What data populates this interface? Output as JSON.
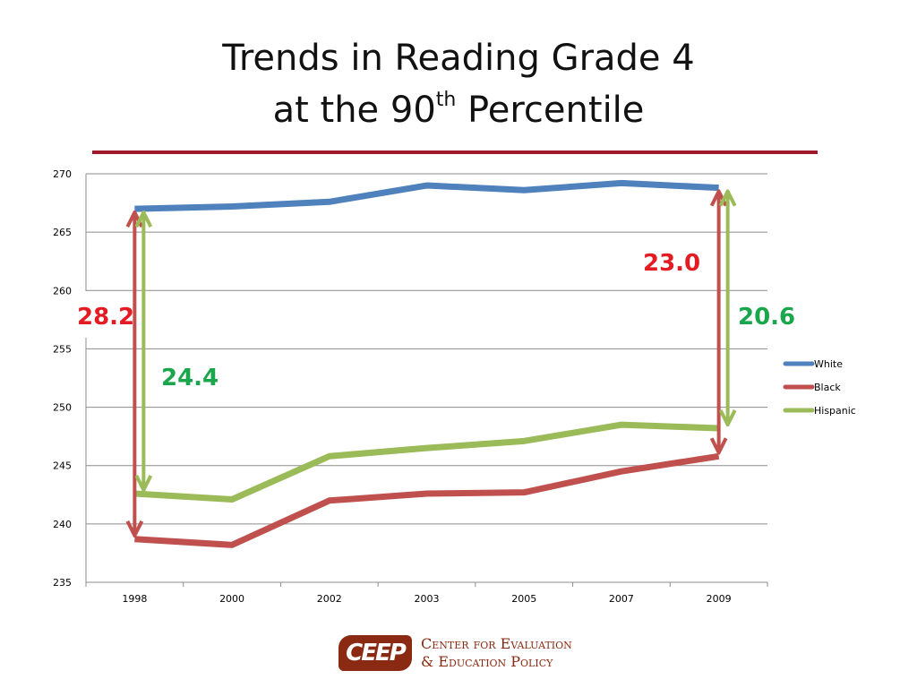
{
  "slide": {
    "title_line1": "Trends in Reading Grade 4",
    "title_line2_pre": "at the 90",
    "title_sup": "th",
    "title_line2_post": " Percentile"
  },
  "chart_data": {
    "type": "line",
    "categories": [
      "1998",
      "2000",
      "2002",
      "2003",
      "2005",
      "2007",
      "2009"
    ],
    "ylim": [
      235,
      270
    ],
    "yticks": [
      235,
      240,
      245,
      250,
      255,
      260,
      265,
      270
    ],
    "grid": true,
    "legend_position": "right",
    "series": [
      {
        "name": "White",
        "color": "#4f81bd",
        "values": [
          267.0,
          267.2,
          267.6,
          269.0,
          268.6,
          269.2,
          268.8
        ]
      },
      {
        "name": "Black",
        "color": "#c0504d",
        "values": [
          238.7,
          238.2,
          242.0,
          242.6,
          242.7,
          244.5,
          245.8
        ]
      },
      {
        "name": "Hispanic",
        "color": "#9bbb59",
        "values": [
          242.6,
          242.1,
          245.8,
          246.5,
          247.1,
          248.5,
          248.2
        ]
      }
    ],
    "annotations": [
      {
        "text": "28.2",
        "color": "#e31b23"
      },
      {
        "text": "24.4",
        "color": "#1aa64b"
      },
      {
        "text": "23.0",
        "color": "#e31b23"
      },
      {
        "text": "20.6",
        "color": "#1aa64b"
      }
    ],
    "gap_arrows": [
      {
        "category": "1998",
        "from": "White",
        "to": "Black",
        "color": "#c0504d"
      },
      {
        "category": "1998",
        "from": "White",
        "to": "Hispanic",
        "color": "#9bbb59"
      },
      {
        "category": "2009",
        "from": "White",
        "to": "Black",
        "color": "#c0504d"
      },
      {
        "category": "2009",
        "from": "White",
        "to": "Hispanic",
        "color": "#9bbb59"
      }
    ]
  },
  "logo": {
    "mark": "CEEP",
    "line1": "Center for Evaluation",
    "line2": "& Education Policy",
    "color": "#8a2a12"
  }
}
